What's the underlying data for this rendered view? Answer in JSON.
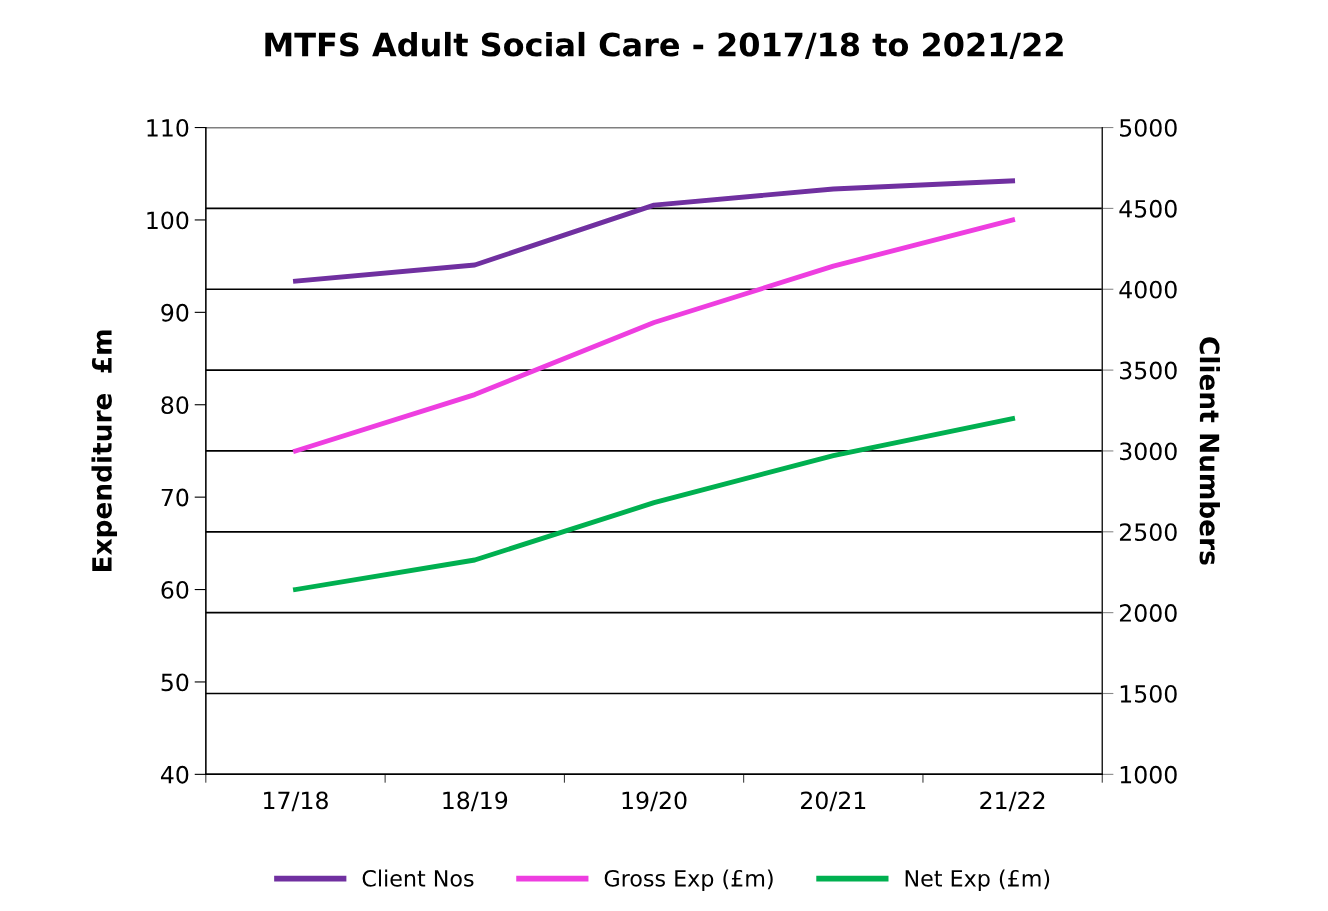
{
  "chart_data": {
    "type": "line",
    "title": "MTFS Adult Social Care - 2017/18 to 2021/22",
    "ylabel": "Expenditure  £m",
    "y2label": "Client Numbers",
    "categories": [
      "17/18",
      "18/19",
      "19/20",
      "20/21",
      "21/22"
    ],
    "series": [
      {
        "name": "Client Nos",
        "color": "#7030a0",
        "axis": "y2",
        "values": [
          4050,
          4150,
          4520,
          4620,
          4670
        ]
      },
      {
        "name": "Gross Exp (£m)",
        "color": "#ee3ee0",
        "values": [
          75,
          81.1,
          88.9,
          95,
          100
        ]
      },
      {
        "name": "Net Exp (£m)",
        "color": "#00b050",
        "values": [
          60,
          63.2,
          69.4,
          74.5,
          78.5
        ]
      }
    ],
    "ylim": [
      40,
      110
    ],
    "yticks": [
      40,
      50,
      60,
      70,
      80,
      90,
      100,
      110
    ],
    "y2lim": [
      1000,
      5000
    ],
    "y2ticks": [
      1000,
      1500,
      2000,
      2500,
      3000,
      3500,
      4000,
      4500,
      5000
    ],
    "grid": "y2",
    "legend": "bottom",
    "marker": "none",
    "line_style": "solid"
  }
}
